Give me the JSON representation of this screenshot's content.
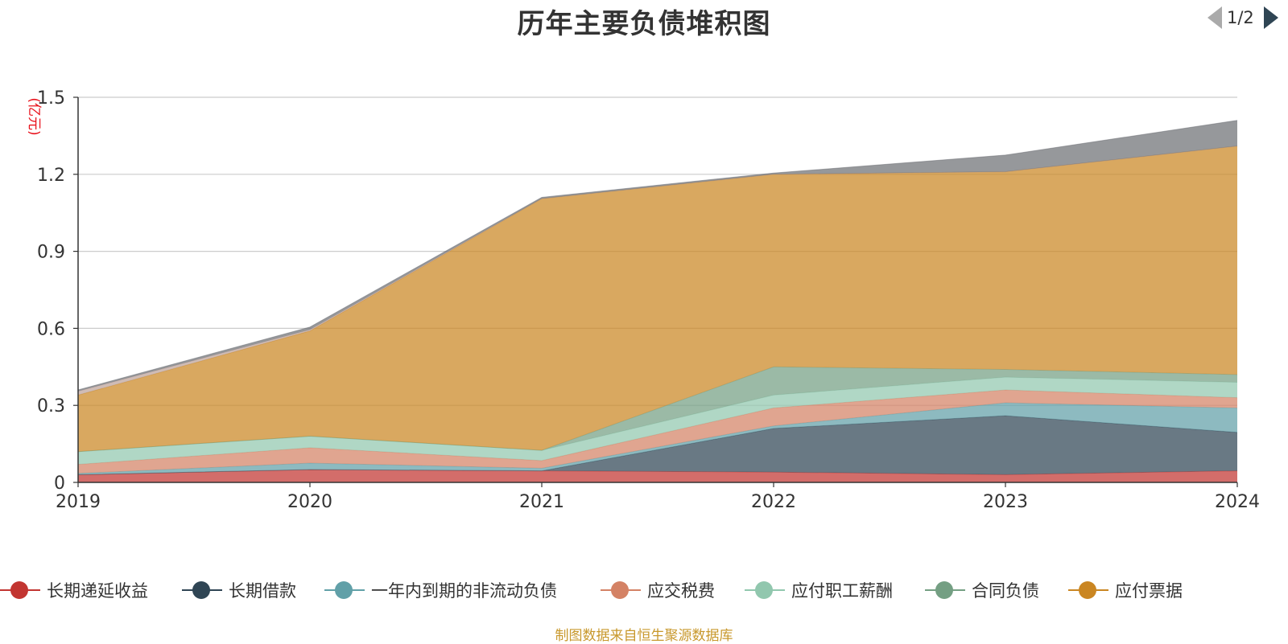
{
  "chart_data": {
    "type": "area",
    "stacked": true,
    "title": "历年主要负债堆积图",
    "unit_label": "(亿元)",
    "categories": [
      "2019",
      "2020",
      "2021",
      "2022",
      "2023",
      "2024"
    ],
    "ylim": [
      0,
      1.5
    ],
    "yticks": [
      "0",
      "0.3",
      "0.6",
      "0.9",
      "1.2",
      "1.5"
    ],
    "grid": true,
    "legend_position": "bottom",
    "series": [
      {
        "name": "长期递延收益",
        "color": "#c23531",
        "values": [
          0.03,
          0.05,
          0.045,
          0.04,
          0.03,
          0.045
        ]
      },
      {
        "name": "长期借款",
        "color": "#2f4554",
        "values": [
          0,
          0,
          0,
          0.17,
          0.23,
          0.15
        ]
      },
      {
        "name": "一年内到期的非流动负债",
        "color": "#61a0a8",
        "values": [
          0.005,
          0.025,
          0.01,
          0.01,
          0.05,
          0.095
        ]
      },
      {
        "name": "应交税费",
        "color": "#d48265",
        "values": [
          0.035,
          0.06,
          0.03,
          0.07,
          0.05,
          0.04
        ]
      },
      {
        "name": "应付职工薪酬",
        "color": "#91c7ae",
        "values": [
          0.05,
          0.045,
          0.04,
          0.05,
          0.05,
          0.06
        ]
      },
      {
        "name": "合同负债",
        "color": "#749f83",
        "values": [
          0,
          0,
          0,
          0.11,
          0.03,
          0.03
        ]
      },
      {
        "name": "应付票据",
        "color": "#ca8622",
        "values": [
          0.22,
          0.41,
          0.98,
          0.75,
          0.77,
          0.89
        ]
      },
      {
        "color": "#bda29a",
        "values": [
          0.015,
          0.005,
          0,
          0,
          0,
          0
        ]
      },
      {
        "color": "#6e7074",
        "values": [
          0.005,
          0.01,
          0.005,
          0.005,
          0.065,
          0.1
        ]
      }
    ],
    "legend_pager": "1/2",
    "source_note": "制图数据来自恒生聚源数据库"
  }
}
